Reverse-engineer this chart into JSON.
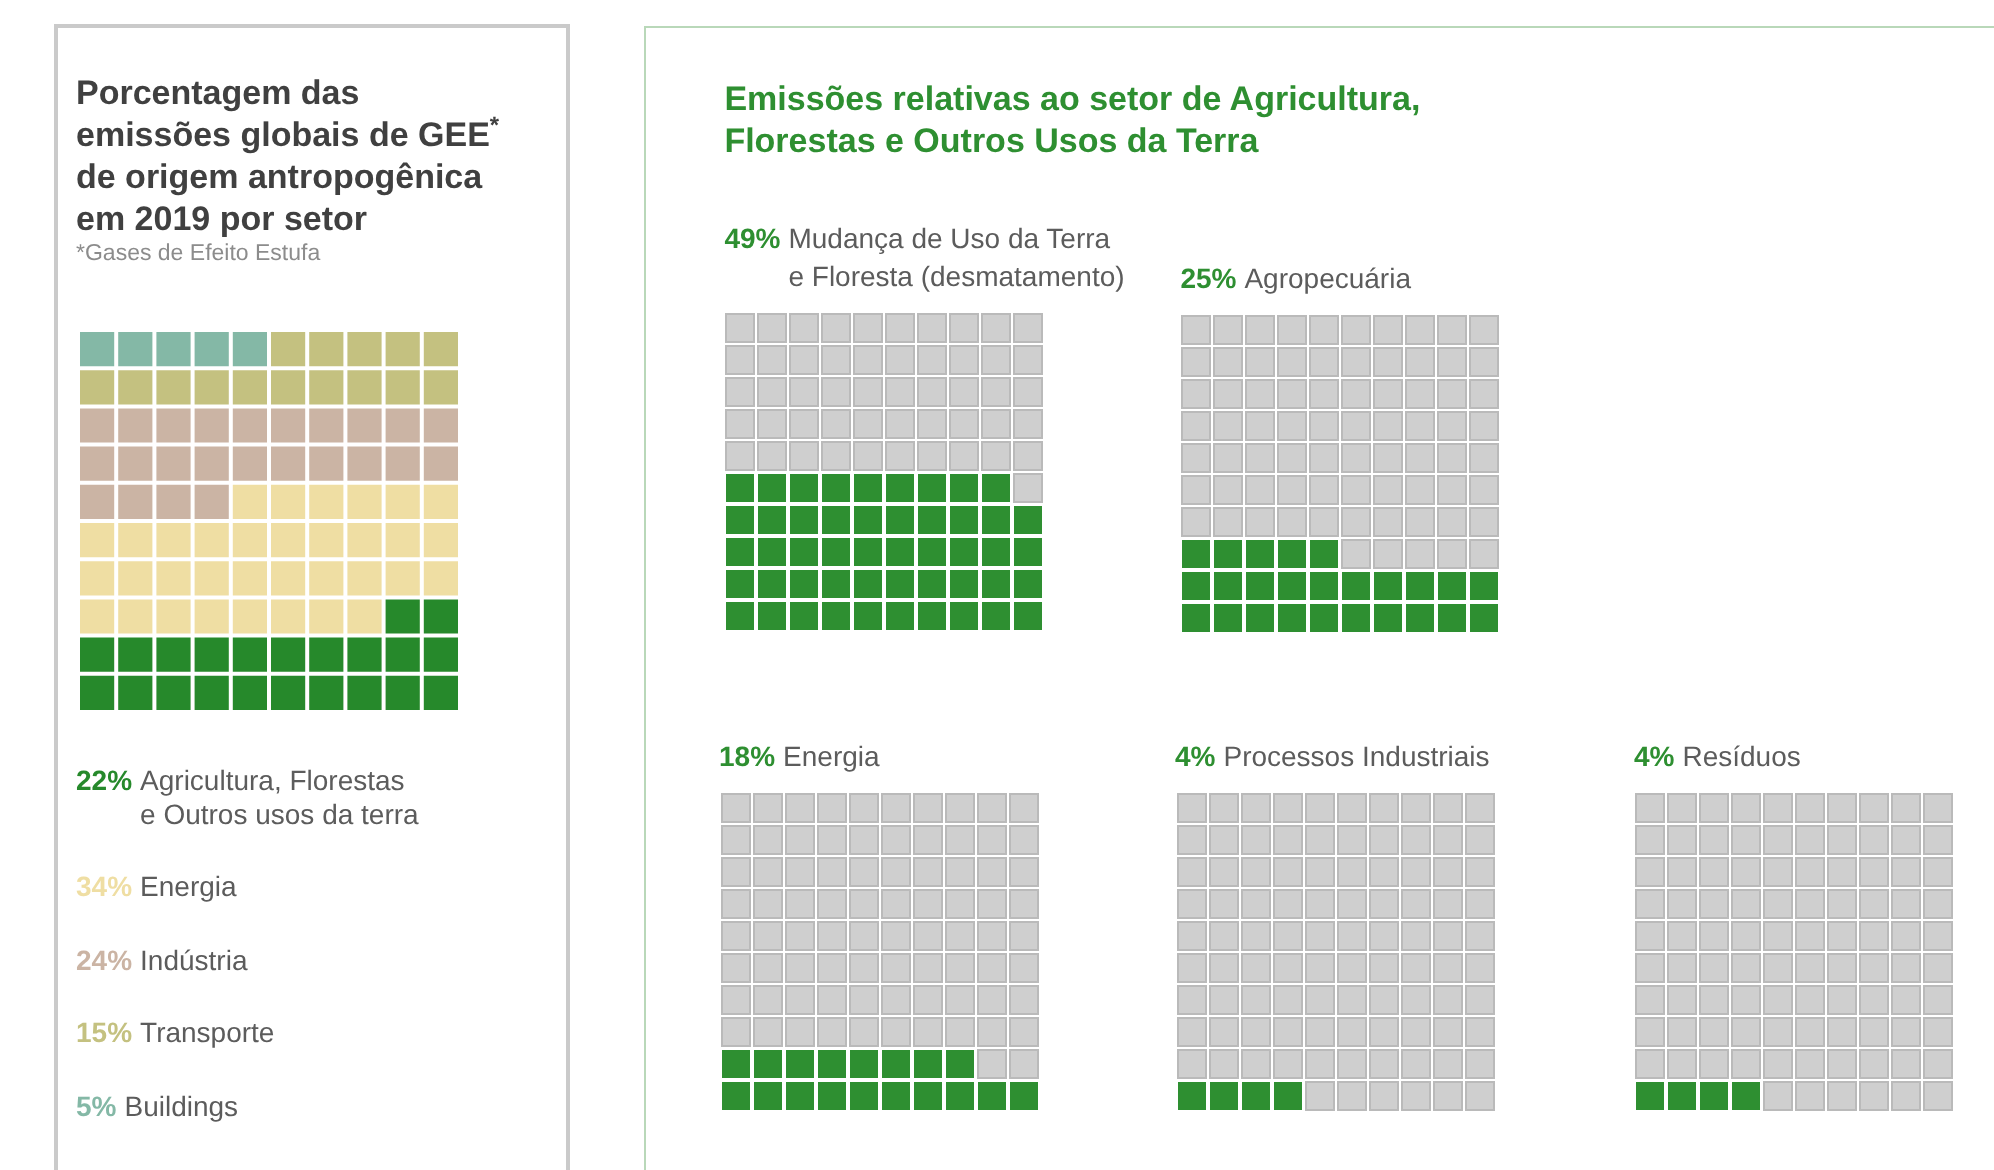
{
  "chart_data": [
    {
      "type": "other",
      "title": "Porcentagem das emissões globais de GEE$^{*}$ de origem antropogênica em 2019 por setor",
      "subtitle": "*Gases de Efeito Estufa",
      "categories": [
        "Agricultura, Florestas e Outros usos da terra",
        "Energia",
        "Indústria",
        "Transporte",
        "Buildings"
      ],
      "values": [
        22,
        34,
        24,
        15,
        5
      ],
      "value_labels": [
        "22%",
        "34%",
        "24%",
        "15%",
        "5%"
      ],
      "colors": [
        "#26892b",
        "#efdea3",
        "#cbb4a4",
        "#c4c180",
        "#84b8a6"
      ]
    },
    {
      "type": "other",
      "title": "Emissões relativas ao setor de Agricultura, Florestas e Outros Usos da Terra",
      "categories": [
        "Mudança de Uso da Terra e Floresta (desmatamento)",
        "Agropecuária",
        "Energia",
        "Processos Industriais",
        "Resíduos"
      ],
      "values": [
        49,
        25,
        18,
        4,
        4
      ],
      "value_labels": [
        "49%",
        "25%",
        "18%",
        "4%",
        "4%"
      ],
      "color": "#2e8f31"
    }
  ]
}
